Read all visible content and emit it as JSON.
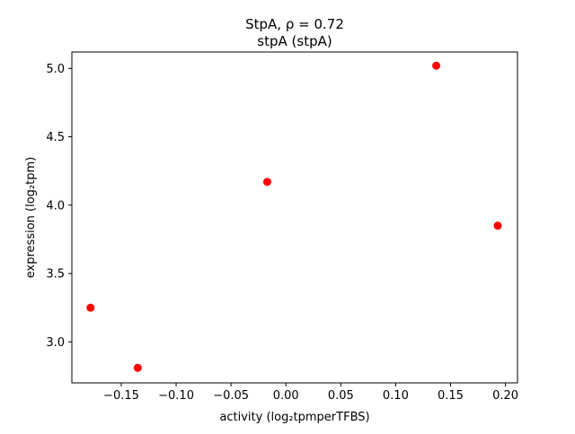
{
  "chart_data": {
    "type": "scatter",
    "title_lines": [
      "StpA, ρ = 0.72",
      "stpA (stpA)"
    ],
    "xlabel": "activity (log₂tpmperTFBS)",
    "ylabel": "expression (log₂tpm)",
    "xlim": [
      -0.195,
      0.211
    ],
    "ylim": [
      2.7,
      5.12
    ],
    "xticks": [
      -0.15,
      -0.1,
      -0.05,
      0.0,
      0.05,
      0.1,
      0.15,
      0.2
    ],
    "xtick_labels": [
      "−0.15",
      "−0.10",
      "−0.05",
      "0.00",
      "0.05",
      "0.10",
      "0.15",
      "0.20"
    ],
    "yticks": [
      3.0,
      3.5,
      4.0,
      4.5,
      5.0
    ],
    "ytick_labels": [
      "3.0",
      "3.5",
      "4.0",
      "4.5",
      "5.0"
    ],
    "grid": false,
    "point_color": "#ff0000",
    "points": [
      {
        "x": -0.178,
        "y": 3.25
      },
      {
        "x": -0.135,
        "y": 2.81
      },
      {
        "x": -0.017,
        "y": 4.17
      },
      {
        "x": 0.137,
        "y": 5.02
      },
      {
        "x": 0.193,
        "y": 3.85
      }
    ]
  }
}
